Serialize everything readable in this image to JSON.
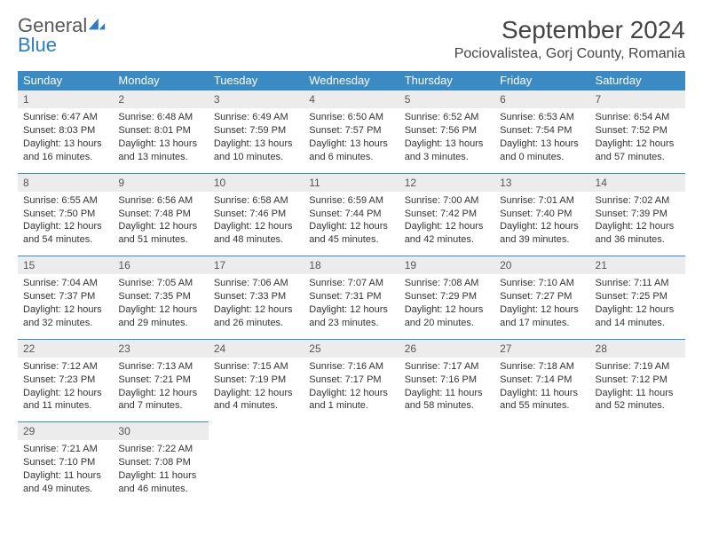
{
  "brand": {
    "name_part1": "General",
    "name_part2": "Blue"
  },
  "title": "September 2024",
  "location": "Pociovalistea, Gorj County, Romania",
  "colors": {
    "header_bg": "#3b8ac4",
    "header_text": "#ffffff",
    "daynum_bg": "#ececec",
    "border_top": "#3b8ac4",
    "brand_gray": "#585858",
    "brand_blue": "#2b7cc0"
  },
  "weekdays": [
    "Sunday",
    "Monday",
    "Tuesday",
    "Wednesday",
    "Thursday",
    "Friday",
    "Saturday"
  ],
  "weeks": [
    [
      {
        "day": "1",
        "sunrise": "Sunrise: 6:47 AM",
        "sunset": "Sunset: 8:03 PM",
        "daylight": "Daylight: 13 hours and 16 minutes."
      },
      {
        "day": "2",
        "sunrise": "Sunrise: 6:48 AM",
        "sunset": "Sunset: 8:01 PM",
        "daylight": "Daylight: 13 hours and 13 minutes."
      },
      {
        "day": "3",
        "sunrise": "Sunrise: 6:49 AM",
        "sunset": "Sunset: 7:59 PM",
        "daylight": "Daylight: 13 hours and 10 minutes."
      },
      {
        "day": "4",
        "sunrise": "Sunrise: 6:50 AM",
        "sunset": "Sunset: 7:57 PM",
        "daylight": "Daylight: 13 hours and 6 minutes."
      },
      {
        "day": "5",
        "sunrise": "Sunrise: 6:52 AM",
        "sunset": "Sunset: 7:56 PM",
        "daylight": "Daylight: 13 hours and 3 minutes."
      },
      {
        "day": "6",
        "sunrise": "Sunrise: 6:53 AM",
        "sunset": "Sunset: 7:54 PM",
        "daylight": "Daylight: 13 hours and 0 minutes."
      },
      {
        "day": "7",
        "sunrise": "Sunrise: 6:54 AM",
        "sunset": "Sunset: 7:52 PM",
        "daylight": "Daylight: 12 hours and 57 minutes."
      }
    ],
    [
      {
        "day": "8",
        "sunrise": "Sunrise: 6:55 AM",
        "sunset": "Sunset: 7:50 PM",
        "daylight": "Daylight: 12 hours and 54 minutes."
      },
      {
        "day": "9",
        "sunrise": "Sunrise: 6:56 AM",
        "sunset": "Sunset: 7:48 PM",
        "daylight": "Daylight: 12 hours and 51 minutes."
      },
      {
        "day": "10",
        "sunrise": "Sunrise: 6:58 AM",
        "sunset": "Sunset: 7:46 PM",
        "daylight": "Daylight: 12 hours and 48 minutes."
      },
      {
        "day": "11",
        "sunrise": "Sunrise: 6:59 AM",
        "sunset": "Sunset: 7:44 PM",
        "daylight": "Daylight: 12 hours and 45 minutes."
      },
      {
        "day": "12",
        "sunrise": "Sunrise: 7:00 AM",
        "sunset": "Sunset: 7:42 PM",
        "daylight": "Daylight: 12 hours and 42 minutes."
      },
      {
        "day": "13",
        "sunrise": "Sunrise: 7:01 AM",
        "sunset": "Sunset: 7:40 PM",
        "daylight": "Daylight: 12 hours and 39 minutes."
      },
      {
        "day": "14",
        "sunrise": "Sunrise: 7:02 AM",
        "sunset": "Sunset: 7:39 PM",
        "daylight": "Daylight: 12 hours and 36 minutes."
      }
    ],
    [
      {
        "day": "15",
        "sunrise": "Sunrise: 7:04 AM",
        "sunset": "Sunset: 7:37 PM",
        "daylight": "Daylight: 12 hours and 32 minutes."
      },
      {
        "day": "16",
        "sunrise": "Sunrise: 7:05 AM",
        "sunset": "Sunset: 7:35 PM",
        "daylight": "Daylight: 12 hours and 29 minutes."
      },
      {
        "day": "17",
        "sunrise": "Sunrise: 7:06 AM",
        "sunset": "Sunset: 7:33 PM",
        "daylight": "Daylight: 12 hours and 26 minutes."
      },
      {
        "day": "18",
        "sunrise": "Sunrise: 7:07 AM",
        "sunset": "Sunset: 7:31 PM",
        "daylight": "Daylight: 12 hours and 23 minutes."
      },
      {
        "day": "19",
        "sunrise": "Sunrise: 7:08 AM",
        "sunset": "Sunset: 7:29 PM",
        "daylight": "Daylight: 12 hours and 20 minutes."
      },
      {
        "day": "20",
        "sunrise": "Sunrise: 7:10 AM",
        "sunset": "Sunset: 7:27 PM",
        "daylight": "Daylight: 12 hours and 17 minutes."
      },
      {
        "day": "21",
        "sunrise": "Sunrise: 7:11 AM",
        "sunset": "Sunset: 7:25 PM",
        "daylight": "Daylight: 12 hours and 14 minutes."
      }
    ],
    [
      {
        "day": "22",
        "sunrise": "Sunrise: 7:12 AM",
        "sunset": "Sunset: 7:23 PM",
        "daylight": "Daylight: 12 hours and 11 minutes."
      },
      {
        "day": "23",
        "sunrise": "Sunrise: 7:13 AM",
        "sunset": "Sunset: 7:21 PM",
        "daylight": "Daylight: 12 hours and 7 minutes."
      },
      {
        "day": "24",
        "sunrise": "Sunrise: 7:15 AM",
        "sunset": "Sunset: 7:19 PM",
        "daylight": "Daylight: 12 hours and 4 minutes."
      },
      {
        "day": "25",
        "sunrise": "Sunrise: 7:16 AM",
        "sunset": "Sunset: 7:17 PM",
        "daylight": "Daylight: 12 hours and 1 minute."
      },
      {
        "day": "26",
        "sunrise": "Sunrise: 7:17 AM",
        "sunset": "Sunset: 7:16 PM",
        "daylight": "Daylight: 11 hours and 58 minutes."
      },
      {
        "day": "27",
        "sunrise": "Sunrise: 7:18 AM",
        "sunset": "Sunset: 7:14 PM",
        "daylight": "Daylight: 11 hours and 55 minutes."
      },
      {
        "day": "28",
        "sunrise": "Sunrise: 7:19 AM",
        "sunset": "Sunset: 7:12 PM",
        "daylight": "Daylight: 11 hours and 52 minutes."
      }
    ],
    [
      {
        "day": "29",
        "sunrise": "Sunrise: 7:21 AM",
        "sunset": "Sunset: 7:10 PM",
        "daylight": "Daylight: 11 hours and 49 minutes."
      },
      {
        "day": "30",
        "sunrise": "Sunrise: 7:22 AM",
        "sunset": "Sunset: 7:08 PM",
        "daylight": "Daylight: 11 hours and 46 minutes."
      },
      null,
      null,
      null,
      null,
      null
    ]
  ]
}
